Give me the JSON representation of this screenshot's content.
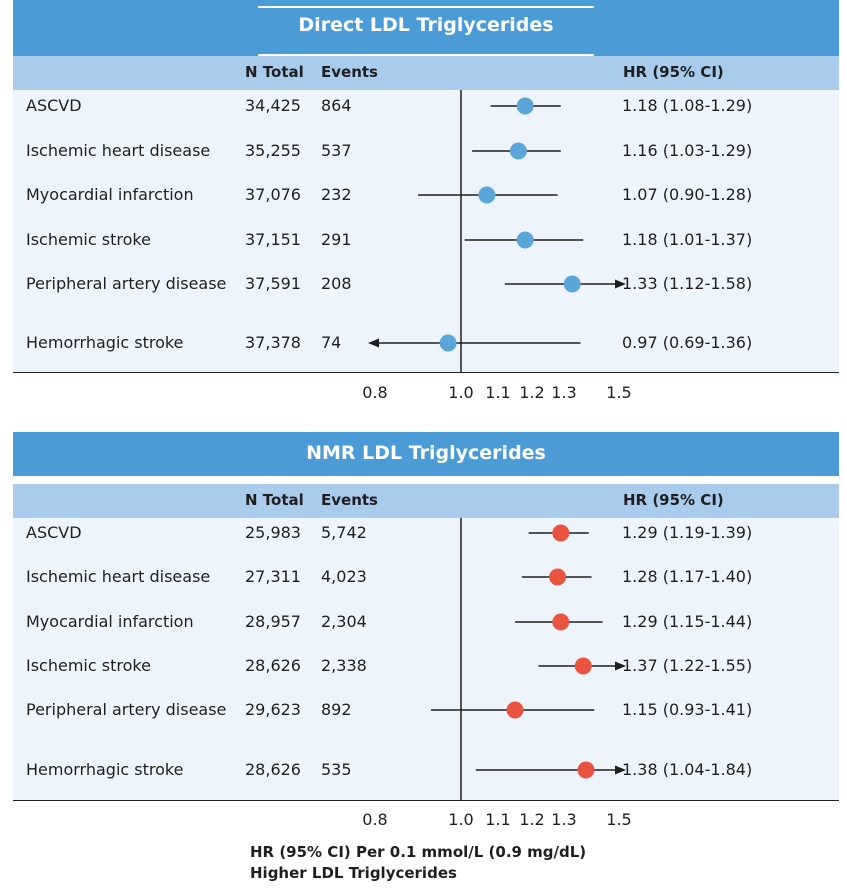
{
  "chart_data": [
    {
      "type": "forest",
      "title": "Direct LDL Triglycerides",
      "columns": {
        "n_total": "N Total",
        "events": "Events",
        "hr": "HR (95% CI)"
      },
      "x_ticks": [
        "0.8",
        "1.0",
        "1.1",
        "1.2",
        "1.3",
        "1.5"
      ],
      "x_tick_values": [
        0.8,
        1.0,
        1.1,
        1.2,
        1.3,
        1.5
      ],
      "reference_line": 1.0,
      "marker_color": "#5aa6d8",
      "rows": [
        {
          "label": "ASCVD",
          "n_total": "34,425",
          "events": "864",
          "hr_text": "1.18 (1.08-1.29)",
          "hr": 1.18,
          "lo": 1.08,
          "hi": 1.29
        },
        {
          "label": "Ischemic heart disease",
          "n_total": "35,255",
          "events": "537",
          "hr_text": "1.16 (1.03-1.29)",
          "hr": 1.16,
          "lo": 1.03,
          "hi": 1.29
        },
        {
          "label": "Myocardial infarction",
          "n_total": "37,076",
          "events": "232",
          "hr_text": "1.07 (0.90-1.28)",
          "hr": 1.07,
          "lo": 0.9,
          "hi": 1.28
        },
        {
          "label": "Ischemic stroke",
          "n_total": "37,151",
          "events": "291",
          "hr_text": "1.18 (1.01-1.37)",
          "hr": 1.18,
          "lo": 1.01,
          "hi": 1.37
        },
        {
          "label": "Peripheral artery disease",
          "n_total": "37,591",
          "events": "208",
          "hr_text": "1.33 (1.12-1.58)",
          "hr": 1.33,
          "lo": 1.12,
          "hi": 1.58
        },
        {
          "label": "Hemorrhagic stroke",
          "n_total": "37,378",
          "events": "74",
          "hr_text": "0.97 (0.69-1.36)",
          "hr": 0.97,
          "lo": 0.69,
          "hi": 1.36
        }
      ]
    },
    {
      "type": "forest",
      "title": "NMR LDL Triglycerides",
      "columns": {
        "n_total": "N Total",
        "events": "Events",
        "hr": "HR (95% CI)"
      },
      "x_ticks": [
        "0.8",
        "1.0",
        "1.1",
        "1.2",
        "1.3",
        "1.5"
      ],
      "x_tick_values": [
        0.8,
        1.0,
        1.1,
        1.2,
        1.3,
        1.5
      ],
      "reference_line": 1.0,
      "marker_color": "#e8543f",
      "rows": [
        {
          "label": "ASCVD",
          "n_total": "25,983",
          "events": "5,742",
          "hr_text": "1.29 (1.19-1.39)",
          "hr": 1.29,
          "lo": 1.19,
          "hi": 1.39
        },
        {
          "label": "Ischemic heart disease",
          "n_total": "27,311",
          "events": "4,023",
          "hr_text": "1.28 (1.17-1.40)",
          "hr": 1.28,
          "lo": 1.17,
          "hi": 1.4
        },
        {
          "label": "Myocardial infarction",
          "n_total": "28,957",
          "events": "2,304",
          "hr_text": "1.29 (1.15-1.44)",
          "hr": 1.29,
          "lo": 1.15,
          "hi": 1.44
        },
        {
          "label": "Ischemic stroke",
          "n_total": "28,626",
          "events": "2,338",
          "hr_text": "1.37 (1.22-1.55)",
          "hr": 1.37,
          "lo": 1.22,
          "hi": 1.55
        },
        {
          "label": "Peripheral artery disease",
          "n_total": "29,623",
          "events": "892",
          "hr_text": "1.15 (0.93-1.41)",
          "hr": 1.15,
          "lo": 0.93,
          "hi": 1.41
        },
        {
          "label": "Hemorrhagic stroke",
          "n_total": "28,626",
          "events": "535",
          "hr_text": "1.38 (1.04-1.84)",
          "hr": 1.38,
          "lo": 1.04,
          "hi": 1.84
        }
      ]
    }
  ],
  "footer": {
    "line1": "HR (95% CI) Per 0.1 mmol/L (0.9 mg/dL)",
    "line2": "Higher LDL Triglycerides"
  }
}
